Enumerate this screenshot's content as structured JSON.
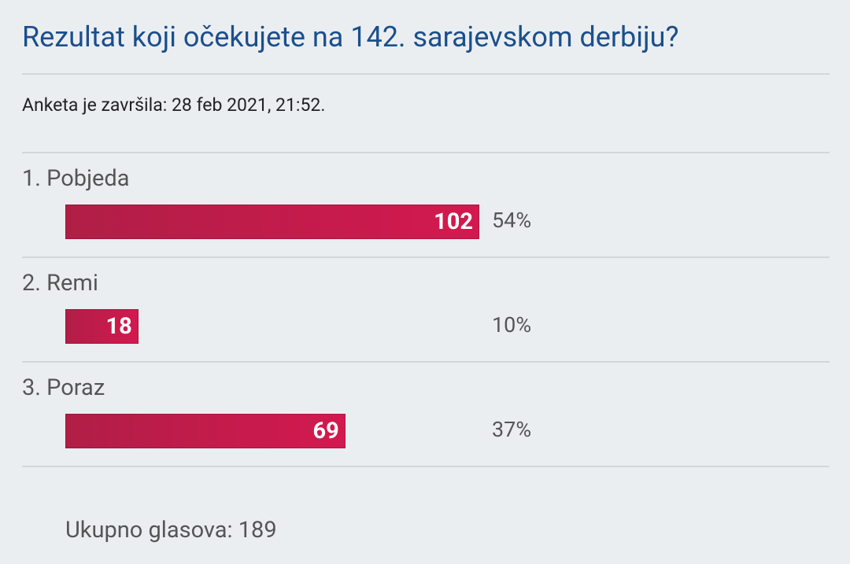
{
  "poll": {
    "title": "Rezultat koji očekujete na 142. sarajevskom derbiju?",
    "status": "Anketa je završila: 28 feb 2021, 21:52.",
    "options": [
      {
        "label": "1. Pobjeda",
        "votes": 102,
        "percent": "54%"
      },
      {
        "label": "2. Remi",
        "votes": 18,
        "percent": "10%"
      },
      {
        "label": "3. Poraz",
        "votes": 69,
        "percent": "37%"
      }
    ],
    "total": "Ukupno glasova: 189"
  }
}
